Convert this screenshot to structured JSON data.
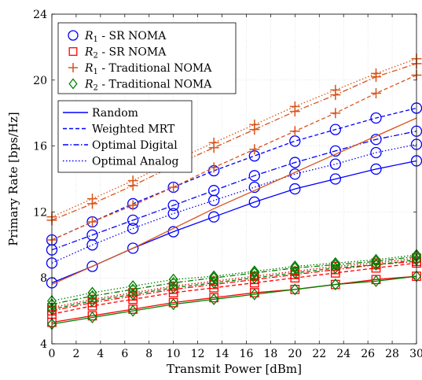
{
  "chart_data": {
    "type": "line",
    "xlabel": "Transmit Power [dBm]",
    "ylabel": "Primary Rate [bps/Hz]",
    "xlim": [
      0,
      30
    ],
    "ylim": [
      4,
      24
    ],
    "xticks": [
      0,
      2,
      4,
      6,
      8,
      10,
      12,
      14,
      16,
      18,
      20,
      22,
      24,
      26,
      28,
      30
    ],
    "yticks": [
      4,
      8,
      12,
      16,
      20,
      24
    ],
    "grid": true,
    "legend_rate": {
      "placement": "top-left",
      "entries": [
        {
          "label": "R1 - SR NOMA",
          "sym": "R",
          "sub": "1",
          "suffix": " - SR NOMA",
          "marker": "circle",
          "color": "#0000ff"
        },
        {
          "label": "R2 - SR NOMA",
          "sym": "R",
          "sub": "2",
          "suffix": " - SR NOMA",
          "marker": "square",
          "color": "#ff0000"
        },
        {
          "label": "R1 - Traditional NOMA",
          "sym": "R",
          "sub": "1",
          "suffix": " - Traditional NOMA",
          "marker": "plus",
          "color": "#d95319"
        },
        {
          "label": "R2 - Traditional NOMA",
          "sym": "R",
          "sub": "2",
          "suffix": " - Traditional NOMA",
          "marker": "diamond",
          "color": "#008000"
        }
      ]
    },
    "legend_scheme": {
      "placement": "upper-left",
      "entries": [
        {
          "label": "Random",
          "dash": "solid",
          "color": "#0000ff"
        },
        {
          "label": "Weighted MRT",
          "dash": "dashed",
          "color": "#0000ff"
        },
        {
          "label": "Optimal Digital",
          "dash": "dashdot",
          "color": "#0000ff"
        },
        {
          "label": "Optimal Analog",
          "dash": "dotted",
          "color": "#0000ff"
        }
      ]
    },
    "x": [
      0,
      3.33,
      6.67,
      10,
      13.33,
      16.67,
      20,
      23.33,
      26.67,
      30
    ],
    "series": [
      {
        "user": "R1",
        "scheme": "SR NOMA",
        "dash": "solid",
        "marker": "circle",
        "color": "#0000ff",
        "values": [
          7.7,
          8.7,
          9.8,
          10.8,
          11.7,
          12.6,
          13.4,
          14.0,
          14.6,
          15.1
        ]
      },
      {
        "user": "R1",
        "scheme": "SR NOMA",
        "dash": "dashed",
        "marker": "circle",
        "color": "#0000ff",
        "values": [
          10.3,
          11.4,
          12.5,
          13.5,
          14.5,
          15.4,
          16.3,
          17.0,
          17.7,
          18.3
        ]
      },
      {
        "user": "R1",
        "scheme": "SR NOMA",
        "dash": "dashdot",
        "marker": "circle",
        "color": "#0000ff",
        "values": [
          9.7,
          10.6,
          11.5,
          12.4,
          13.3,
          14.2,
          15.0,
          15.7,
          16.4,
          16.9
        ]
      },
      {
        "user": "R1",
        "scheme": "SR NOMA",
        "dash": "dotted",
        "marker": "circle",
        "color": "#0000ff",
        "values": [
          8.9,
          10.0,
          11.0,
          11.9,
          12.7,
          13.5,
          14.3,
          14.9,
          15.6,
          16.1
        ]
      },
      {
        "user": "R1",
        "scheme": "Traditional NOMA",
        "dash": "solid",
        "marker": null,
        "color": "#d95319",
        "values": [
          7.6,
          8.7,
          9.8,
          11.0,
          12.2,
          13.3,
          14.4,
          15.5,
          16.6,
          17.7
        ]
      },
      {
        "user": "R1",
        "scheme": "Traditional NOMA",
        "dash": "dashed",
        "marker": "plus",
        "color": "#d95319",
        "values": [
          10.3,
          11.4,
          12.4,
          13.5,
          14.7,
          15.8,
          16.9,
          18.0,
          19.2,
          20.3
        ]
      },
      {
        "user": "R1",
        "scheme": "Traditional NOMA",
        "dash": "dashdot",
        "marker": "plus",
        "color": "#d95319",
        "values": [
          11.5,
          12.5,
          13.6,
          14.8,
          15.9,
          17.0,
          18.1,
          19.1,
          20.2,
          21.0
        ]
      },
      {
        "user": "R1",
        "scheme": "Traditional NOMA",
        "dash": "dotted",
        "marker": "plus",
        "color": "#d95319",
        "values": [
          11.7,
          12.8,
          13.9,
          15.1,
          16.2,
          17.3,
          18.4,
          19.4,
          20.4,
          21.3
        ]
      },
      {
        "user": "R2",
        "scheme": "SR NOMA",
        "dash": "solid",
        "marker": "square",
        "color": "#ff0000",
        "values": [
          5.3,
          5.7,
          6.1,
          6.5,
          6.8,
          7.1,
          7.3,
          7.6,
          7.9,
          8.1
        ]
      },
      {
        "user": "R2",
        "scheme": "SR NOMA",
        "dash": "dashed",
        "marker": "square",
        "color": "#ff0000",
        "values": [
          5.8,
          6.3,
          6.7,
          7.1,
          7.4,
          7.7,
          8.0,
          8.3,
          8.6,
          8.9
        ]
      },
      {
        "user": "R2",
        "scheme": "SR NOMA",
        "dash": "dashdot",
        "marker": "square",
        "color": "#ff0000",
        "values": [
          6.0,
          6.5,
          6.9,
          7.3,
          7.6,
          7.9,
          8.2,
          8.5,
          8.8,
          9.0
        ]
      },
      {
        "user": "R2",
        "scheme": "SR NOMA",
        "dash": "dotted",
        "marker": "square",
        "color": "#ff0000",
        "values": [
          6.2,
          6.7,
          7.1,
          7.5,
          7.8,
          8.1,
          8.4,
          8.7,
          8.9,
          9.2
        ]
      },
      {
        "user": "R2",
        "scheme": "Traditional NOMA",
        "dash": "solid",
        "marker": "diamond",
        "color": "#008000",
        "values": [
          5.2,
          5.6,
          6.0,
          6.4,
          6.7,
          7.0,
          7.3,
          7.6,
          7.8,
          8.1
        ]
      },
      {
        "user": "R2",
        "scheme": "Traditional NOMA",
        "dash": "dashed",
        "marker": "diamond",
        "color": "#008000",
        "values": [
          6.1,
          6.6,
          7.0,
          7.4,
          7.7,
          8.0,
          8.3,
          8.6,
          8.8,
          9.1
        ]
      },
      {
        "user": "R2",
        "scheme": "Traditional NOMA",
        "dash": "dashdot",
        "marker": "diamond",
        "color": "#008000",
        "values": [
          6.4,
          6.9,
          7.3,
          7.7,
          8.0,
          8.3,
          8.6,
          8.8,
          9.0,
          9.3
        ]
      },
      {
        "user": "R2",
        "scheme": "Traditional NOMA",
        "dash": "dotted",
        "marker": "diamond",
        "color": "#008000",
        "values": [
          6.6,
          7.1,
          7.5,
          7.9,
          8.1,
          8.4,
          8.7,
          8.9,
          9.1,
          9.4
        ]
      }
    ]
  }
}
